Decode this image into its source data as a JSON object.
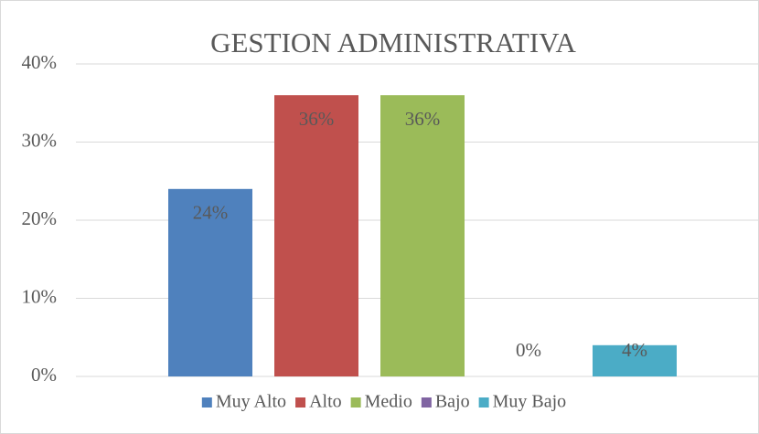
{
  "chart_data": {
    "type": "bar",
    "title": "GESTION ADMINISTRATIVA",
    "categories": [
      null
    ],
    "series": [
      {
        "name": "Muy Alto",
        "color": "#4f81bd",
        "values": [
          24
        ],
        "value_labels": [
          "24%"
        ]
      },
      {
        "name": "Alto",
        "color": "#c0504d",
        "values": [
          36
        ],
        "value_labels": [
          "36%"
        ]
      },
      {
        "name": "Medio",
        "color": "#9bbb59",
        "values": [
          36
        ],
        "value_labels": [
          "36%"
        ]
      },
      {
        "name": "Bajo",
        "color": "#8064a2",
        "values": [
          0
        ],
        "value_labels": [
          "0%"
        ]
      },
      {
        "name": "Muy Bajo",
        "color": "#4bacc6",
        "values": [
          4
        ],
        "value_labels": [
          "4%"
        ]
      }
    ],
    "ylim": [
      0,
      40
    ],
    "yticks": [
      {
        "value": 0,
        "label": "0%"
      },
      {
        "value": 10,
        "label": "10%"
      },
      {
        "value": 20,
        "label": "20%"
      },
      {
        "value": 30,
        "label": "30%"
      },
      {
        "value": 40,
        "label": "40%"
      }
    ],
    "grid": true,
    "legend": "bottom"
  }
}
